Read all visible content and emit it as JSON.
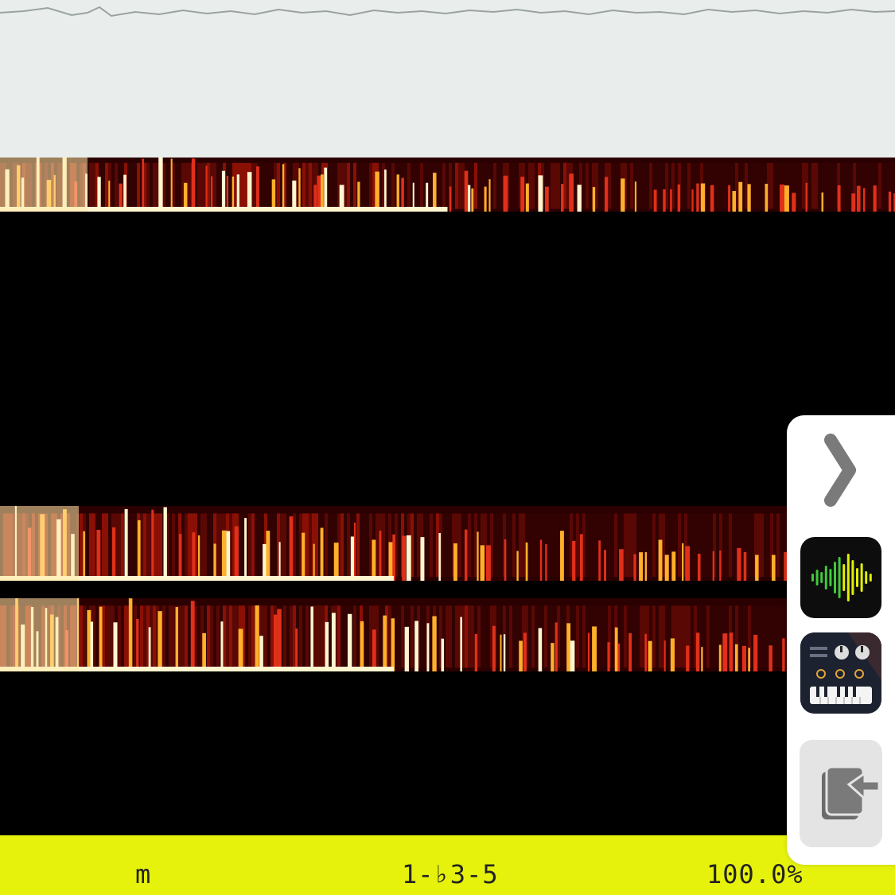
{
  "status_bar": {
    "mode": "m",
    "formula": "1-♭3-5",
    "confidence": "100.0%"
  },
  "side_panel": {
    "collapse_icon": "chevron-right-icon",
    "apps": [
      {
        "icon": "waveform-app-icon",
        "colors": {
          "bg": "#0d0d0d",
          "bars_start": "#41c93b",
          "bars_end": "#e2f000"
        }
      },
      {
        "icon": "synth-keyboard-app-icon",
        "colors": {
          "bg": "#1d2230",
          "accent": "#e0a43a"
        }
      }
    ],
    "export_icon": "export-icon"
  },
  "colors": {
    "top_bg": "#e9eeec",
    "status_bg": "#e6f20c",
    "spectrogram_hot": "#fff6d0",
    "spectrogram_mid": "#e0301a",
    "spectrogram_low": "#4a0505"
  }
}
